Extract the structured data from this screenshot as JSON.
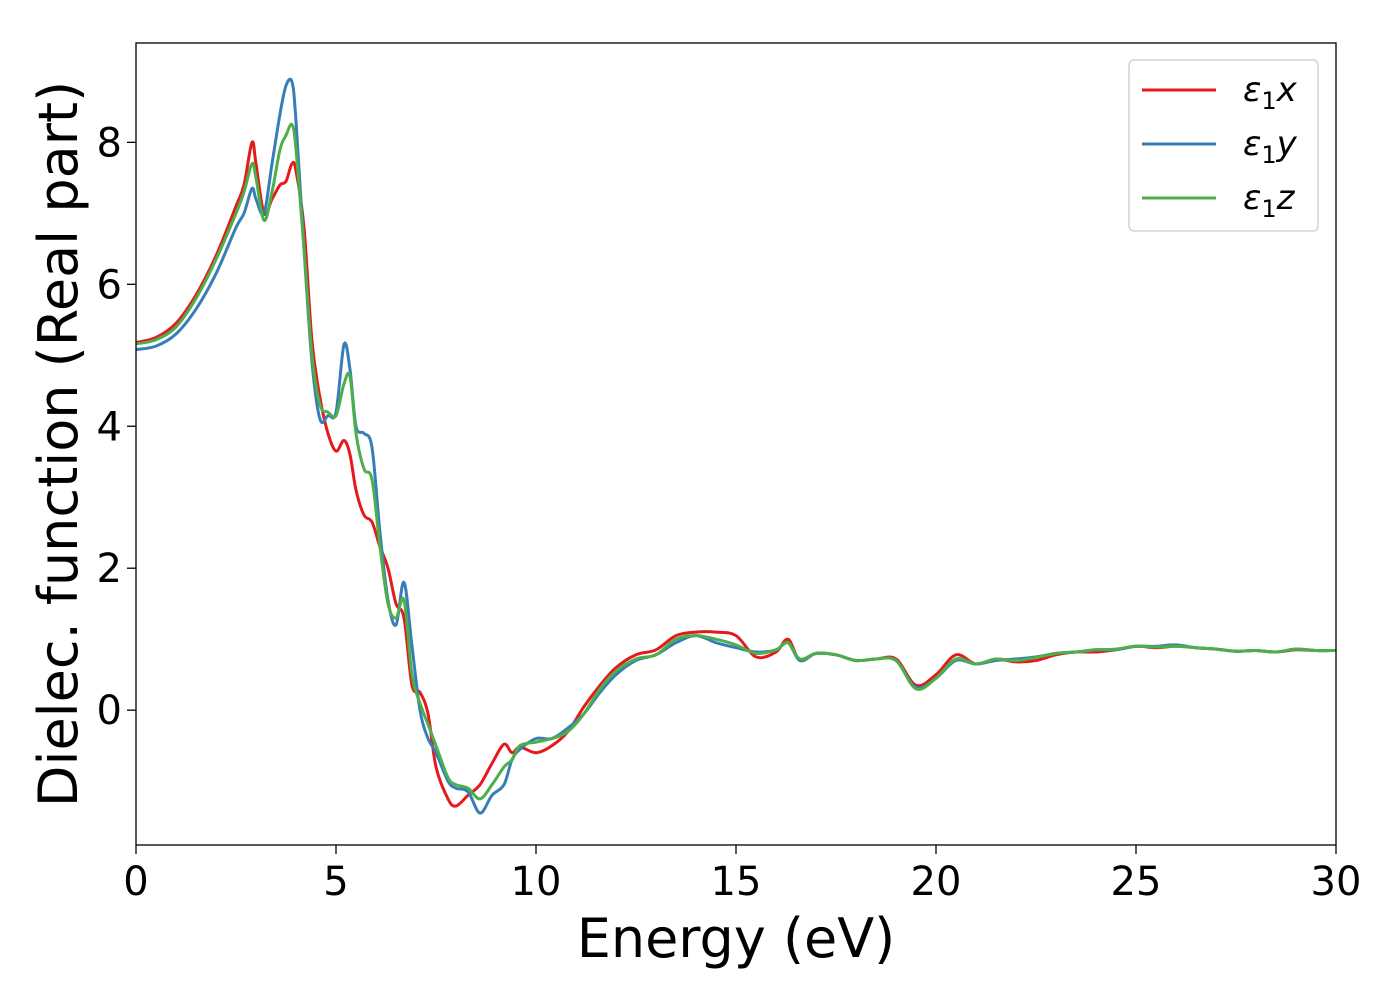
{
  "chart_data": {
    "type": "line",
    "xlabel": "Energy (eV)",
    "ylabel": "Dielec. function (Real part)",
    "xlim": [
      0,
      30
    ],
    "ylim": [
      -1.9,
      9.4
    ],
    "xticks": [
      "0",
      "5",
      "10",
      "15",
      "20",
      "25",
      "30"
    ],
    "yticks": [
      "0",
      "2",
      "4",
      "6",
      "8"
    ],
    "grid": false,
    "legend_position": "top-right",
    "series": [
      {
        "name": "ε1x",
        "legend": {
          "base": "ε",
          "sub": "1",
          "var": "x"
        },
        "color": "#e41a1c",
        "x": [
          0,
          0.5,
          1,
          1.5,
          2,
          2.5,
          2.7,
          2.9,
          3.0,
          3.2,
          3.4,
          3.6,
          3.75,
          3.9,
          4.0,
          4.2,
          4.4,
          4.6,
          4.8,
          5.0,
          5.2,
          5.35,
          5.5,
          5.7,
          5.9,
          6.1,
          6.3,
          6.5,
          6.7,
          6.9,
          7.1,
          7.3,
          7.5,
          7.8,
          8.0,
          8.3,
          8.6,
          8.9,
          9.2,
          9.4,
          9.6,
          10.0,
          10.4,
          10.8,
          11.2,
          11.6,
          12.0,
          12.5,
          13.0,
          13.5,
          14.0,
          14.5,
          15.0,
          15.5,
          16.0,
          16.3,
          16.6,
          17.0,
          17.5,
          18.0,
          18.5,
          19.0,
          19.5,
          20.0,
          20.5,
          21.0,
          21.5,
          22.0,
          22.5,
          23.0,
          23.5,
          24.0,
          24.5,
          25.0,
          25.5,
          26.0,
          26.5,
          27.0,
          27.5,
          28.0,
          28.5,
          29.0,
          29.5,
          30.0
        ],
        "y": [
          5.18,
          5.25,
          5.45,
          5.85,
          6.4,
          7.1,
          7.4,
          8.0,
          7.7,
          7.0,
          7.2,
          7.4,
          7.45,
          7.7,
          7.6,
          6.8,
          5.2,
          4.4,
          3.9,
          3.65,
          3.8,
          3.6,
          3.1,
          2.75,
          2.65,
          2.3,
          2.0,
          1.5,
          1.3,
          0.35,
          0.25,
          -0.05,
          -0.8,
          -1.25,
          -1.35,
          -1.2,
          -1.05,
          -0.75,
          -0.48,
          -0.6,
          -0.52,
          -0.6,
          -0.5,
          -0.3,
          0.05,
          0.35,
          0.6,
          0.78,
          0.85,
          1.05,
          1.1,
          1.1,
          1.05,
          0.75,
          0.82,
          1.0,
          0.7,
          0.8,
          0.78,
          0.7,
          0.72,
          0.72,
          0.35,
          0.5,
          0.78,
          0.65,
          0.72,
          0.68,
          0.7,
          0.78,
          0.82,
          0.82,
          0.85,
          0.9,
          0.88,
          0.9,
          0.88,
          0.86,
          0.83,
          0.84,
          0.82,
          0.85,
          0.84,
          0.84
        ]
      },
      {
        "name": "ε1y",
        "legend": {
          "base": "ε",
          "sub": "1",
          "var": "y"
        },
        "color": "#377eb8",
        "x": [
          0,
          0.5,
          1,
          1.5,
          2,
          2.5,
          2.7,
          2.9,
          3.0,
          3.2,
          3.4,
          3.6,
          3.75,
          3.9,
          4.0,
          4.2,
          4.4,
          4.6,
          4.8,
          5.0,
          5.2,
          5.35,
          5.5,
          5.7,
          5.9,
          6.1,
          6.3,
          6.5,
          6.7,
          6.9,
          7.1,
          7.3,
          7.5,
          7.8,
          8.0,
          8.3,
          8.6,
          8.9,
          9.2,
          9.4,
          9.6,
          10.0,
          10.4,
          10.8,
          11.2,
          11.6,
          12.0,
          12.5,
          13.0,
          13.5,
          14.0,
          14.5,
          15.0,
          15.5,
          16.0,
          16.3,
          16.6,
          17.0,
          17.5,
          18.0,
          18.5,
          19.0,
          19.5,
          20.0,
          20.5,
          21.0,
          21.5,
          22.0,
          22.5,
          23.0,
          23.5,
          24.0,
          24.5,
          25.0,
          25.5,
          26.0,
          26.5,
          27.0,
          27.5,
          28.0,
          28.5,
          29.0,
          29.5,
          30.0
        ],
        "y": [
          5.08,
          5.13,
          5.3,
          5.65,
          6.15,
          6.8,
          7.0,
          7.35,
          7.2,
          7.0,
          7.7,
          8.4,
          8.8,
          8.85,
          8.3,
          6.5,
          4.9,
          4.1,
          4.15,
          4.2,
          5.15,
          4.8,
          4.0,
          3.9,
          3.7,
          2.5,
          1.55,
          1.2,
          1.8,
          0.9,
          0.0,
          -0.4,
          -0.6,
          -1.0,
          -1.1,
          -1.15,
          -1.45,
          -1.2,
          -1.05,
          -0.7,
          -0.55,
          -0.4,
          -0.4,
          -0.25,
          -0.05,
          0.25,
          0.5,
          0.7,
          0.78,
          0.95,
          1.05,
          0.95,
          0.88,
          0.82,
          0.85,
          0.95,
          0.7,
          0.8,
          0.78,
          0.7,
          0.72,
          0.7,
          0.32,
          0.45,
          0.7,
          0.65,
          0.7,
          0.72,
          0.75,
          0.8,
          0.82,
          0.85,
          0.85,
          0.9,
          0.9,
          0.92,
          0.88,
          0.86,
          0.83,
          0.84,
          0.82,
          0.86,
          0.84,
          0.84
        ]
      },
      {
        "name": "ε1z",
        "legend": {
          "base": "ε",
          "sub": "1",
          "var": "z"
        },
        "color": "#4daf4a",
        "x": [
          0,
          0.5,
          1,
          1.5,
          2,
          2.5,
          2.7,
          2.9,
          3.0,
          3.2,
          3.4,
          3.6,
          3.75,
          3.9,
          4.0,
          4.2,
          4.4,
          4.6,
          4.8,
          5.0,
          5.2,
          5.35,
          5.5,
          5.7,
          5.9,
          6.1,
          6.3,
          6.5,
          6.7,
          6.9,
          7.1,
          7.3,
          7.5,
          7.8,
          8.0,
          8.3,
          8.6,
          8.9,
          9.2,
          9.4,
          9.6,
          10.0,
          10.4,
          10.8,
          11.2,
          11.6,
          12.0,
          12.5,
          13.0,
          13.5,
          14.0,
          14.5,
          15.0,
          15.5,
          16.0,
          16.3,
          16.6,
          17.0,
          17.5,
          18.0,
          18.5,
          19.0,
          19.5,
          20.0,
          20.5,
          21.0,
          21.5,
          22.0,
          22.5,
          23.0,
          23.5,
          24.0,
          24.5,
          25.0,
          25.5,
          26.0,
          26.5,
          27.0,
          27.5,
          28.0,
          28.5,
          29.0,
          29.5,
          30.0
        ],
        "y": [
          5.16,
          5.22,
          5.4,
          5.8,
          6.35,
          7.0,
          7.3,
          7.7,
          7.5,
          6.9,
          7.3,
          7.9,
          8.1,
          8.25,
          7.9,
          6.5,
          5.0,
          4.3,
          4.2,
          4.15,
          4.6,
          4.7,
          3.9,
          3.4,
          3.25,
          2.3,
          1.5,
          1.3,
          1.55,
          0.5,
          0.1,
          -0.2,
          -0.5,
          -0.95,
          -1.05,
          -1.1,
          -1.25,
          -1.05,
          -0.8,
          -0.7,
          -0.5,
          -0.45,
          -0.4,
          -0.3,
          -0.05,
          0.3,
          0.55,
          0.72,
          0.78,
          1.0,
          1.05,
          1.0,
          0.92,
          0.8,
          0.85,
          0.95,
          0.72,
          0.8,
          0.78,
          0.7,
          0.72,
          0.7,
          0.3,
          0.45,
          0.72,
          0.65,
          0.72,
          0.7,
          0.74,
          0.8,
          0.82,
          0.85,
          0.86,
          0.9,
          0.89,
          0.9,
          0.88,
          0.86,
          0.83,
          0.84,
          0.82,
          0.86,
          0.84,
          0.84
        ]
      }
    ]
  }
}
